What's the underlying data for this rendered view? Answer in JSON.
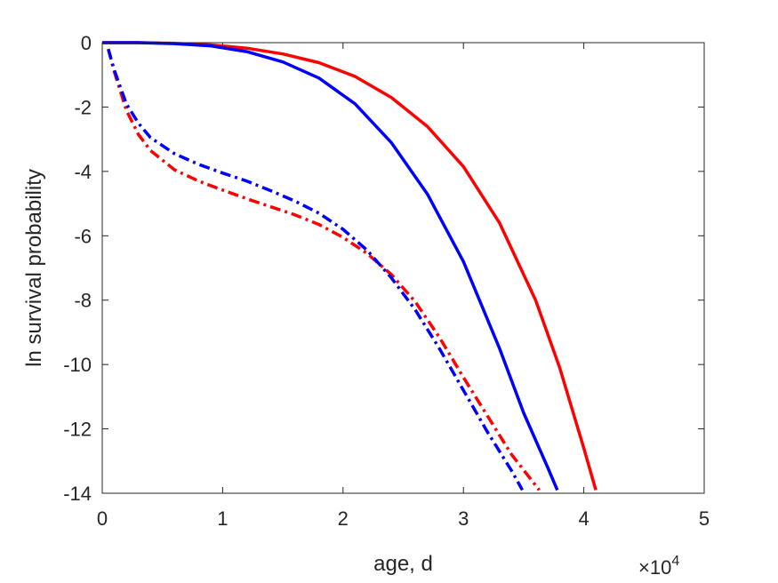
{
  "chart_data": {
    "type": "line",
    "xlabel": "age, d",
    "ylabel": "ln survival probability",
    "x_multiplier": {
      "base": "×10",
      "exponent": "4"
    },
    "xlim": [
      0,
      50000
    ],
    "ylim": [
      -14,
      0
    ],
    "x_ticks": [
      0,
      10000,
      20000,
      30000,
      40000,
      50000
    ],
    "x_tick_labels": [
      "0",
      "1",
      "2",
      "3",
      "4",
      "5"
    ],
    "y_ticks": [
      0,
      -2,
      -4,
      -6,
      -8,
      -10,
      -12,
      -14
    ],
    "y_tick_labels": [
      "0",
      "-2",
      "-4",
      "-6",
      "-8",
      "-10",
      "-12",
      "-14"
    ],
    "grid": false,
    "series": [
      {
        "color": "#ff0000",
        "style": "solid",
        "x": [
          0,
          3000,
          6000,
          9000,
          12000,
          15000,
          18000,
          21000,
          24000,
          27000,
          30000,
          33000,
          36000,
          38000,
          40000,
          41000
        ],
        "y": [
          0,
          0,
          -0.02,
          -0.07,
          -0.17,
          -0.35,
          -0.62,
          -1.05,
          -1.7,
          -2.6,
          -3.85,
          -5.6,
          -8.0,
          -10.1,
          -12.6,
          -13.9
        ]
      },
      {
        "color": "#0000ff",
        "style": "solid",
        "x": [
          0,
          3000,
          6000,
          9000,
          12000,
          15000,
          18000,
          21000,
          24000,
          27000,
          30000,
          33000,
          35000,
          37000,
          37800
        ],
        "y": [
          0,
          0,
          -0.03,
          -0.1,
          -0.28,
          -0.6,
          -1.1,
          -1.9,
          -3.1,
          -4.7,
          -6.8,
          -9.5,
          -11.5,
          -13.2,
          -13.9
        ]
      },
      {
        "color": "#ff0000",
        "style": "dash-dot",
        "x": [
          500,
          1000,
          2000,
          3000,
          4000,
          6000,
          8000,
          10000,
          12000,
          14000,
          16000,
          18000,
          20000,
          22000,
          24000,
          26000,
          28000,
          30000,
          32000,
          34000,
          36300
        ],
        "y": [
          -0.2,
          -0.9,
          -2.1,
          -2.85,
          -3.35,
          -3.95,
          -4.3,
          -4.58,
          -4.85,
          -5.1,
          -5.35,
          -5.65,
          -6.05,
          -6.55,
          -7.2,
          -8.05,
          -9.15,
          -10.4,
          -11.6,
          -12.8,
          -13.9
        ]
      },
      {
        "color": "#0000ff",
        "style": "dash-dot",
        "x": [
          500,
          1000,
          2000,
          3000,
          4000,
          6000,
          8000,
          10000,
          12000,
          14000,
          16000,
          18000,
          20000,
          22000,
          24000,
          26000,
          28000,
          30000,
          32000,
          34000,
          34900
        ],
        "y": [
          -0.2,
          -0.85,
          -1.9,
          -2.5,
          -2.95,
          -3.45,
          -3.78,
          -4.05,
          -4.3,
          -4.6,
          -4.92,
          -5.3,
          -5.8,
          -6.45,
          -7.3,
          -8.3,
          -9.5,
          -10.8,
          -12.1,
          -13.3,
          -13.9
        ]
      }
    ]
  }
}
